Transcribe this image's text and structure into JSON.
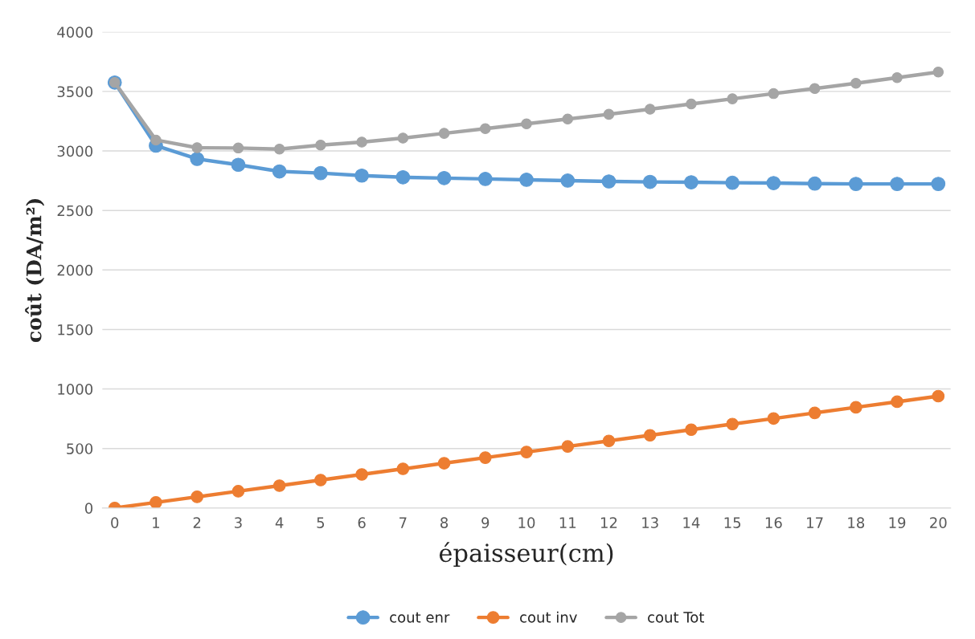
{
  "chart_data": {
    "type": "line",
    "xlabel": "épaisseur(cm)",
    "ylabel": "coût (DA/m²)",
    "categories": [
      "0",
      "1",
      "2",
      "3",
      "4",
      "5",
      "6",
      "7",
      "8",
      "9",
      "10",
      "11",
      "12",
      "13",
      "14",
      "15",
      "16",
      "17",
      "18",
      "19",
      "20"
    ],
    "series": [
      {
        "name": "cout enr",
        "color": "#5b9bd5",
        "values": [
          3575,
          3045,
          2933,
          2884,
          2828,
          2814,
          2793,
          2779,
          2772,
          2765,
          2758,
          2751,
          2744,
          2740,
          2737,
          2733,
          2730,
          2726,
          2723,
          2723,
          2723
        ]
      },
      {
        "name": "cout inv",
        "color": "#ed7d31",
        "values": [
          0,
          47,
          94,
          141,
          188,
          235,
          282,
          329,
          376,
          423,
          470,
          517,
          564,
          611,
          658,
          705,
          752,
          799,
          846,
          893,
          940
        ]
      },
      {
        "name": "cout Tot",
        "color": "#a5a5a5",
        "values": [
          3575,
          3092,
          3027,
          3025,
          3016,
          3049,
          3075,
          3108,
          3148,
          3188,
          3228,
          3268,
          3308,
          3351,
          3395,
          3438,
          3482,
          3525,
          3569,
          3616,
          3663
        ]
      }
    ],
    "ylim": [
      0,
      4000
    ],
    "yticks": [
      0,
      500,
      1000,
      1500,
      2000,
      2500,
      3000,
      3500,
      4000
    ],
    "grid": "y",
    "legend": "bottom",
    "marker": "circle",
    "line_style": "solid"
  }
}
